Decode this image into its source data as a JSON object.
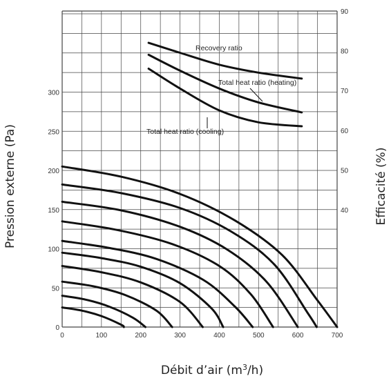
{
  "chart_data": {
    "type": "line",
    "x_axis": {
      "label": "Débit d’air (m",
      "label_sup": "3",
      "label_tail": "/h)",
      "range": [
        0,
        700
      ],
      "ticks": [
        0,
        100,
        200,
        300,
        400,
        500,
        600,
        700
      ]
    },
    "y_left": {
      "label": "Pression externe (Pa)",
      "range": [
        0,
        350
      ],
      "ticks": [
        0,
        50,
        100,
        150,
        200,
        250,
        300
      ]
    },
    "y_right": {
      "label": "Efficacité (%)",
      "range": [
        0,
        90
      ],
      "ticks": [
        40,
        50,
        60,
        70,
        80,
        90
      ]
    },
    "grid": true,
    "pressure_curves": [
      {
        "points": [
          [
            0,
            25
          ],
          [
            50,
            21
          ],
          [
            100,
            14
          ],
          [
            150,
            3
          ],
          [
            157,
            0
          ]
        ]
      },
      {
        "points": [
          [
            0,
            40
          ],
          [
            60,
            35
          ],
          [
            120,
            26
          ],
          [
            180,
            12
          ],
          [
            212,
            0
          ]
        ]
      },
      {
        "points": [
          [
            0,
            58
          ],
          [
            80,
            52
          ],
          [
            160,
            41
          ],
          [
            240,
            21
          ],
          [
            280,
            0
          ]
        ]
      },
      {
        "points": [
          [
            0,
            78
          ],
          [
            100,
            70
          ],
          [
            200,
            57
          ],
          [
            300,
            32
          ],
          [
            358,
            0
          ]
        ]
      },
      {
        "points": [
          [
            0,
            95
          ],
          [
            100,
            88
          ],
          [
            200,
            77
          ],
          [
            300,
            56
          ],
          [
            380,
            24
          ],
          [
            410,
            0
          ]
        ]
      },
      {
        "points": [
          [
            0,
            110
          ],
          [
            120,
            101
          ],
          [
            240,
            87
          ],
          [
            360,
            60
          ],
          [
            440,
            26
          ],
          [
            485,
            0
          ]
        ]
      },
      {
        "points": [
          [
            0,
            135
          ],
          [
            140,
            124
          ],
          [
            280,
            106
          ],
          [
            400,
            78
          ],
          [
            480,
            42
          ],
          [
            537,
            0
          ]
        ]
      },
      {
        "points": [
          [
            0,
            160
          ],
          [
            150,
            149
          ],
          [
            300,
            128
          ],
          [
            420,
            99
          ],
          [
            520,
            58
          ],
          [
            600,
            0
          ]
        ]
      },
      {
        "points": [
          [
            0,
            182
          ],
          [
            150,
            171
          ],
          [
            300,
            152
          ],
          [
            430,
            122
          ],
          [
            540,
            80
          ],
          [
            625,
            18
          ],
          [
            648,
            0
          ]
        ]
      },
      {
        "points": [
          [
            0,
            205
          ],
          [
            150,
            192
          ],
          [
            300,
            170
          ],
          [
            440,
            136
          ],
          [
            560,
            92
          ],
          [
            650,
            34
          ],
          [
            700,
            0
          ]
        ]
      }
    ],
    "efficiency_curves": [
      {
        "name": "Recovery ratio",
        "points": [
          [
            220,
            82
          ],
          [
            300,
            79.5
          ],
          [
            400,
            76.5
          ],
          [
            500,
            74.5
          ],
          [
            610,
            73
          ]
        ]
      },
      {
        "name": "Total heat ratio (heating)",
        "points": [
          [
            220,
            79
          ],
          [
            300,
            75
          ],
          [
            400,
            70.5
          ],
          [
            500,
            67
          ],
          [
            610,
            64.5
          ]
        ]
      },
      {
        "name": "Total heat ratio (cooling)",
        "points": [
          [
            220,
            75.5
          ],
          [
            300,
            70.5
          ],
          [
            400,
            65
          ],
          [
            500,
            62
          ],
          [
            610,
            61
          ]
        ]
      }
    ]
  }
}
